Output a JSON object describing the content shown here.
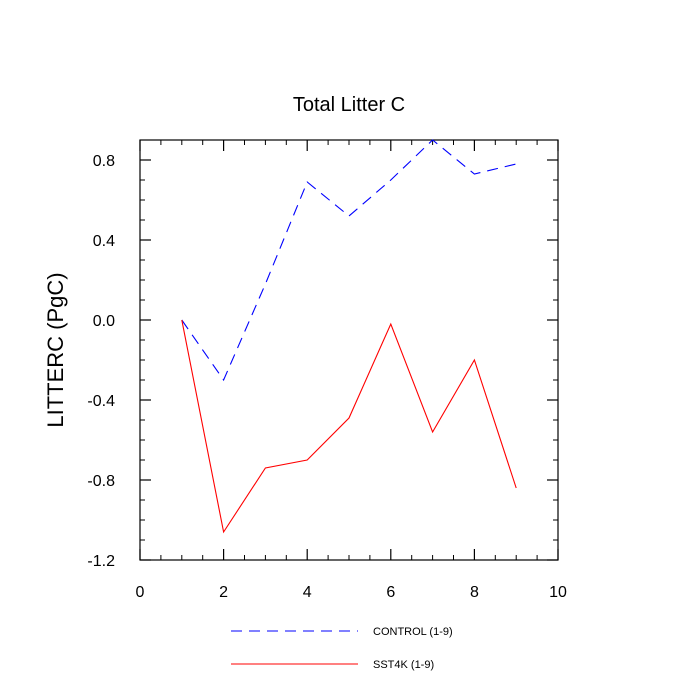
{
  "chart_data": {
    "type": "line",
    "title": "Total Litter C",
    "xlabel": "",
    "ylabel": "LITTERC  (PgC)",
    "xlim": [
      0,
      10
    ],
    "ylim": [
      -1.2,
      0.9
    ],
    "xticks": [
      0,
      2,
      4,
      6,
      8,
      10
    ],
    "yticks": [
      -1.2,
      -0.8,
      -0.4,
      0.0,
      0.4,
      0.8
    ],
    "xtick_labels": [
      "0",
      "2",
      "4",
      "6",
      "8",
      "10"
    ],
    "ytick_labels": [
      "-1.2",
      "-0.8",
      "-0.4",
      "0.0",
      "0.4",
      "0.8"
    ],
    "grid": false,
    "legend_position": "bottom",
    "series": [
      {
        "name": "CONTROL (1-9)",
        "color": "#0000ff",
        "dash": "dashed",
        "x": [
          1,
          2,
          3,
          4,
          5,
          6,
          7,
          8,
          9
        ],
        "y": [
          0.0,
          -0.3,
          0.18,
          0.69,
          0.52,
          0.7,
          0.9,
          0.73,
          0.78
        ]
      },
      {
        "name": "SST4K (1-9)",
        "color": "#ff0000",
        "dash": "solid",
        "x": [
          1,
          2,
          3,
          4,
          5,
          6,
          7,
          8,
          9
        ],
        "y": [
          0.0,
          -1.06,
          -0.74,
          -0.7,
          -0.49,
          -0.02,
          -0.56,
          -0.2,
          -0.84
        ]
      }
    ]
  }
}
